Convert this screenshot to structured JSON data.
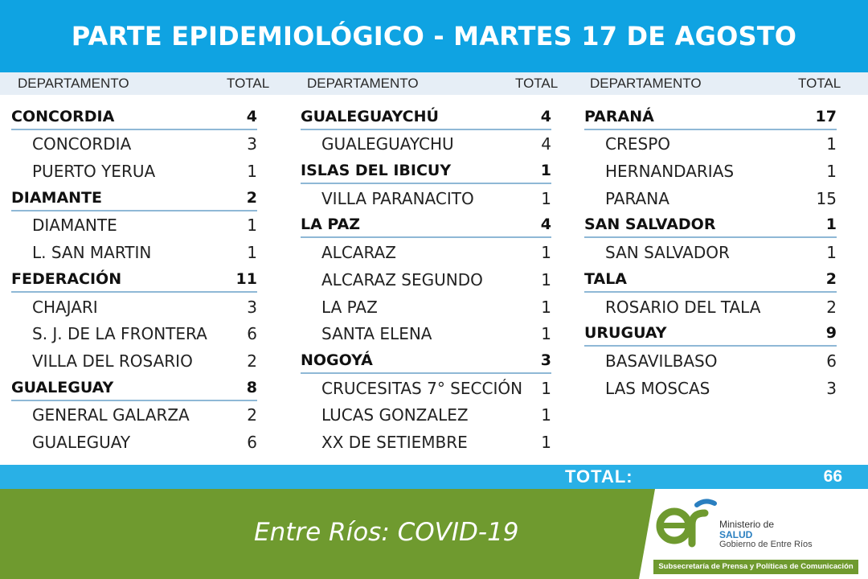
{
  "header": {
    "title": "PARTE EPIDEMIOLÓGICO - MARTES 17 DE AGOSTO"
  },
  "column_headers": {
    "department": "DEPARTAMENTO",
    "total": "TOTAL"
  },
  "columns": [
    {
      "departments": [
        {
          "name": "CONCORDIA",
          "total": "4",
          "locations": [
            {
              "name": "CONCORDIA",
              "total": "3"
            },
            {
              "name": "PUERTO YERUA",
              "total": "1"
            }
          ]
        },
        {
          "name": "DIAMANTE",
          "total": "2",
          "locations": [
            {
              "name": "DIAMANTE",
              "total": "1"
            },
            {
              "name": "L. SAN MARTIN",
              "total": "1"
            }
          ]
        },
        {
          "name": "FEDERACIÓN",
          "total": "11",
          "locations": [
            {
              "name": "CHAJARI",
              "total": "3"
            },
            {
              "name": "S. J. DE LA FRONTERA",
              "total": "6"
            },
            {
              "name": "VILLA DEL ROSARIO",
              "total": "2"
            }
          ]
        },
        {
          "name": "GUALEGUAY",
          "total": "8",
          "locations": [
            {
              "name": "GENERAL GALARZA",
              "total": "2"
            },
            {
              "name": "GUALEGUAY",
              "total": "6"
            }
          ]
        }
      ]
    },
    {
      "departments": [
        {
          "name": "GUALEGUAYCHÚ",
          "total": "4",
          "locations": [
            {
              "name": "GUALEGUAYCHU",
              "total": "4"
            }
          ]
        },
        {
          "name": "ISLAS DEL IBICUY",
          "total": "1",
          "locations": [
            {
              "name": "VILLA PARANACITO",
              "total": "1"
            }
          ]
        },
        {
          "name": "LA PAZ",
          "total": "4",
          "locations": [
            {
              "name": "ALCARAZ",
              "total": "1"
            },
            {
              "name": "ALCARAZ SEGUNDO",
              "total": "1"
            },
            {
              "name": "LA PAZ",
              "total": "1"
            },
            {
              "name": "SANTA ELENA",
              "total": "1"
            }
          ]
        },
        {
          "name": "NOGOYÁ",
          "total": "3",
          "locations": [
            {
              "name": "CRUCESITAS 7° SECCIÓN",
              "total": "1"
            },
            {
              "name": "LUCAS GONZALEZ",
              "total": "1"
            },
            {
              "name": "XX DE SETIEMBRE",
              "total": "1"
            }
          ]
        }
      ]
    },
    {
      "departments": [
        {
          "name": "PARANÁ",
          "total": "17",
          "locations": [
            {
              "name": "CRESPO",
              "total": "1"
            },
            {
              "name": "HERNANDARIAS",
              "total": "1"
            },
            {
              "name": "PARANA",
              "total": "15"
            }
          ]
        },
        {
          "name": "SAN SALVADOR",
          "total": "1",
          "locations": [
            {
              "name": "SAN SALVADOR",
              "total": "1"
            }
          ]
        },
        {
          "name": "TALA",
          "total": "2",
          "locations": [
            {
              "name": "ROSARIO DEL TALA",
              "total": "2"
            }
          ]
        },
        {
          "name": "URUGUAY",
          "total": "9",
          "locations": [
            {
              "name": "BASAVILBASO",
              "total": "6"
            },
            {
              "name": "LAS MOSCAS",
              "total": "3"
            }
          ]
        }
      ]
    }
  ],
  "total_bar": {
    "label": "TOTAL:",
    "value": "66"
  },
  "footer": {
    "slogan": "Entre Ríos: COVID-19",
    "logo": {
      "ministry": "Ministerio de",
      "salud": "SALUD",
      "government": "Gobierno de Entre Ríos",
      "band": "Subsecretaría de Prensa y Políticas de Comunicación"
    }
  },
  "colors": {
    "header_blue": "#0fa3e2",
    "total_bar_blue": "#29b0e6",
    "footer_green": "#6f9a2f",
    "divider_blue": "#8fb8d6"
  }
}
